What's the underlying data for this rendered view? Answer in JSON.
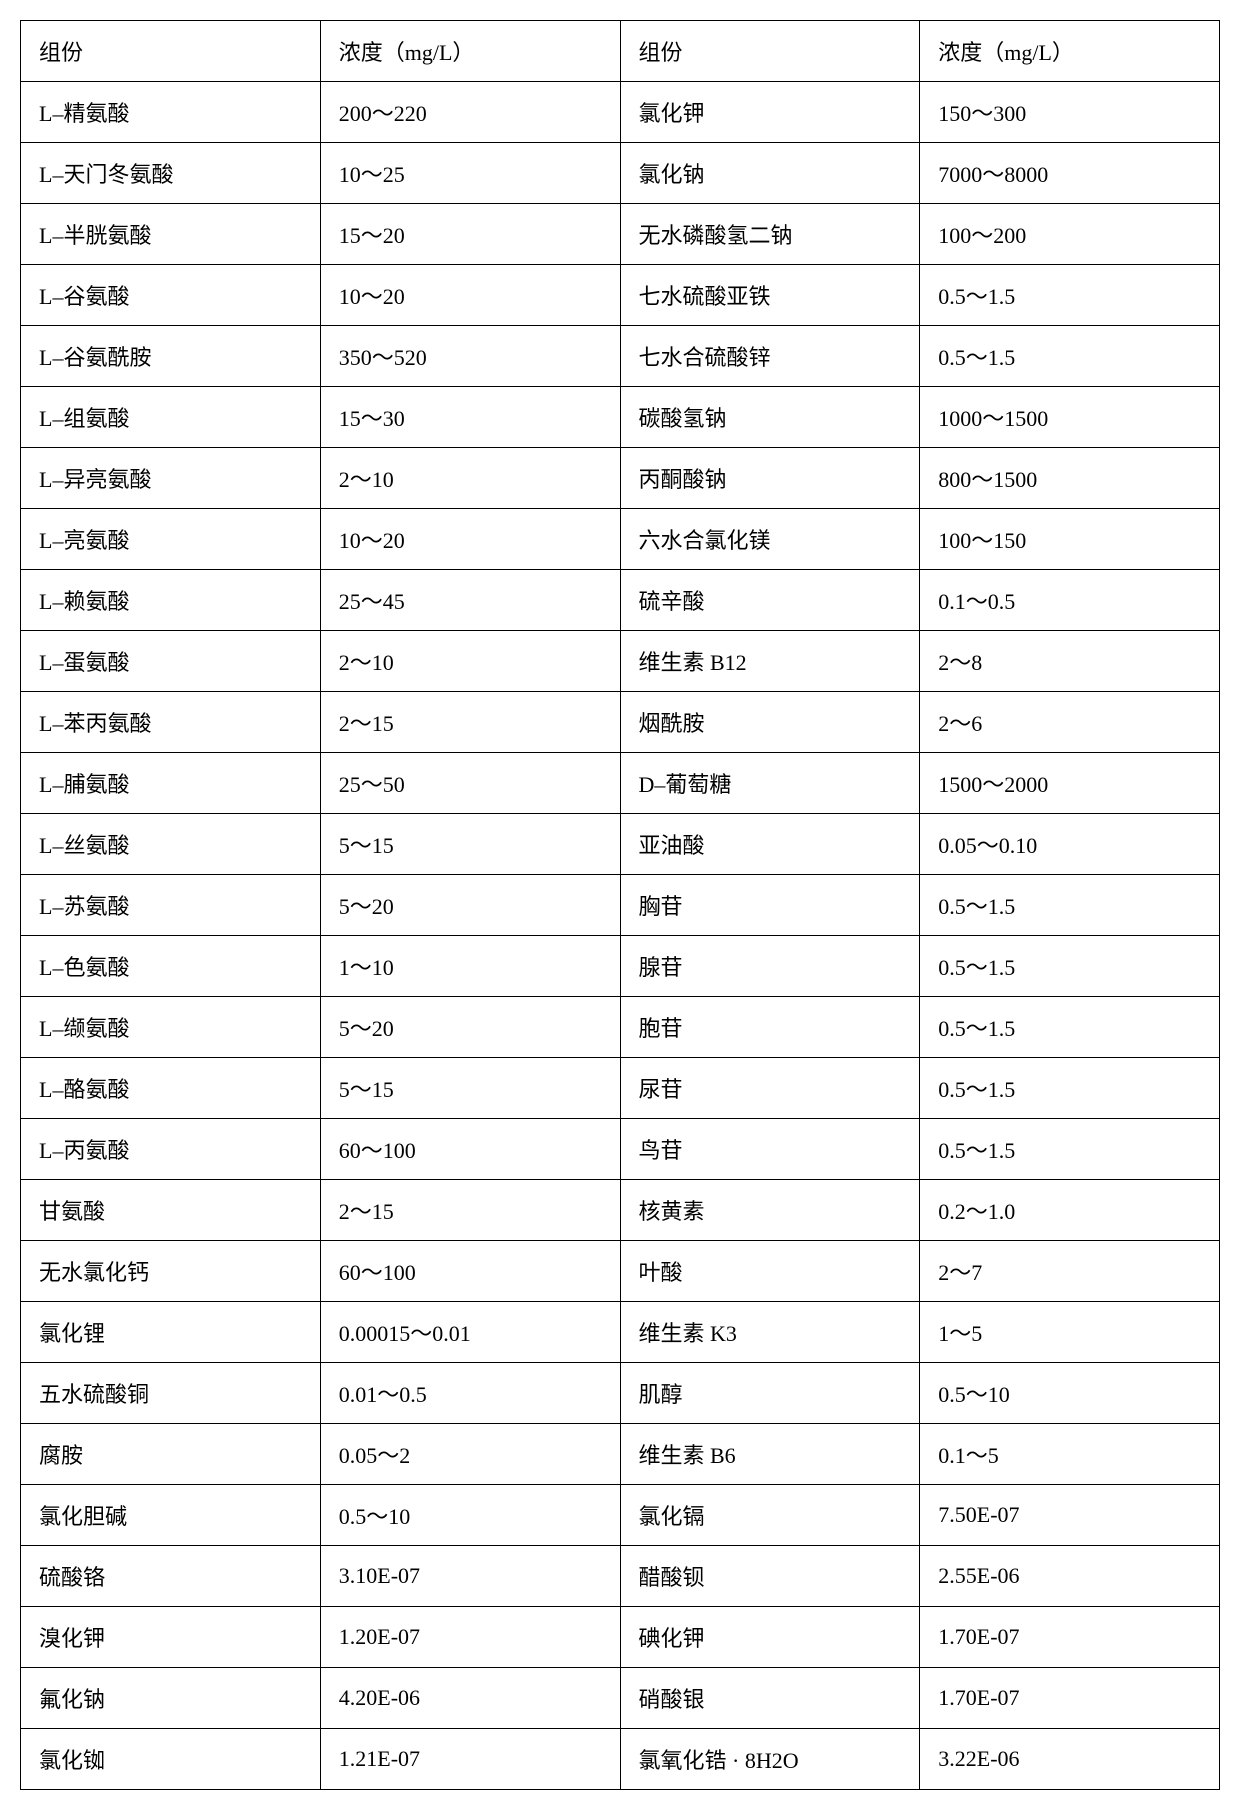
{
  "table": {
    "type": "table",
    "columns": [
      "组份",
      "浓度（mg/L）",
      "组份",
      "浓度（mg/L）"
    ],
    "rows": [
      [
        "L–精氨酸",
        "200～220",
        "氯化钾",
        "150～300"
      ],
      [
        "L–天门冬氨酸",
        "10～25",
        "氯化钠",
        "7000～8000"
      ],
      [
        "L–半胱氨酸",
        "15～20",
        "无水磷酸氢二钠",
        "100～200"
      ],
      [
        "L–谷氨酸",
        "10～20",
        "七水硫酸亚铁",
        "0.5～1.5"
      ],
      [
        "L–谷氨酰胺",
        "350～520",
        "七水合硫酸锌",
        "0.5～1.5"
      ],
      [
        "L–组氨酸",
        "15～30",
        "碳酸氢钠",
        "1000～1500"
      ],
      [
        "L–异亮氨酸",
        "2～10",
        "丙酮酸钠",
        "800～1500"
      ],
      [
        "L–亮氨酸",
        "10～20",
        "六水合氯化镁",
        "100～150"
      ],
      [
        "L–赖氨酸",
        "25～45",
        "硫辛酸",
        "0.1～0.5"
      ],
      [
        "L–蛋氨酸",
        "2～10",
        "维生素 B12",
        "2～8"
      ],
      [
        "L–苯丙氨酸",
        "2～15",
        "烟酰胺",
        "2～6"
      ],
      [
        "L–脯氨酸",
        "25～50",
        "D–葡萄糖",
        "1500～2000"
      ],
      [
        "L–丝氨酸",
        "5～15",
        "亚油酸",
        "0.05～0.10"
      ],
      [
        "L–苏氨酸",
        "5～20",
        "胸苷",
        "0.5～1.5"
      ],
      [
        "L–色氨酸",
        "1～10",
        "腺苷",
        "0.5～1.5"
      ],
      [
        "L–缬氨酸",
        "5～20",
        "胞苷",
        "0.5～1.5"
      ],
      [
        "L–酪氨酸",
        "5～15",
        "尿苷",
        "0.5～1.5"
      ],
      [
        "L–丙氨酸",
        "60～100",
        "鸟苷",
        "0.5～1.5"
      ],
      [
        "甘氨酸",
        "2～15",
        "核黄素",
        "0.2～1.0"
      ],
      [
        "无水氯化钙",
        "60～100",
        "叶酸",
        "2～7"
      ],
      [
        "氯化锂",
        "0.00015～0.01",
        "维生素 K3",
        "1～5"
      ],
      [
        "五水硫酸铜",
        "0.01～0.5",
        "肌醇",
        "0.5～10"
      ],
      [
        "腐胺",
        "0.05～2",
        "维生素 B6",
        "0.1～5"
      ],
      [
        "氯化胆碱",
        "0.5～10",
        "氯化镉",
        "7.50E-07"
      ],
      [
        "硫酸铬",
        "3.10E-07",
        "醋酸钡",
        "2.55E-06"
      ],
      [
        "溴化钾",
        "1.20E-07",
        "碘化钾",
        "1.70E-07"
      ],
      [
        "氟化钠",
        "4.20E-06",
        "硝酸银",
        "1.70E-07"
      ],
      [
        "氯化铷",
        "1.21E-07",
        "氯氧化锆 · 8H2O",
        "3.22E-06"
      ]
    ],
    "border_color": "#000000",
    "background_color": "#ffffff",
    "font_size_pt": 16,
    "col_widths_pct": [
      25,
      25,
      25,
      25
    ]
  }
}
